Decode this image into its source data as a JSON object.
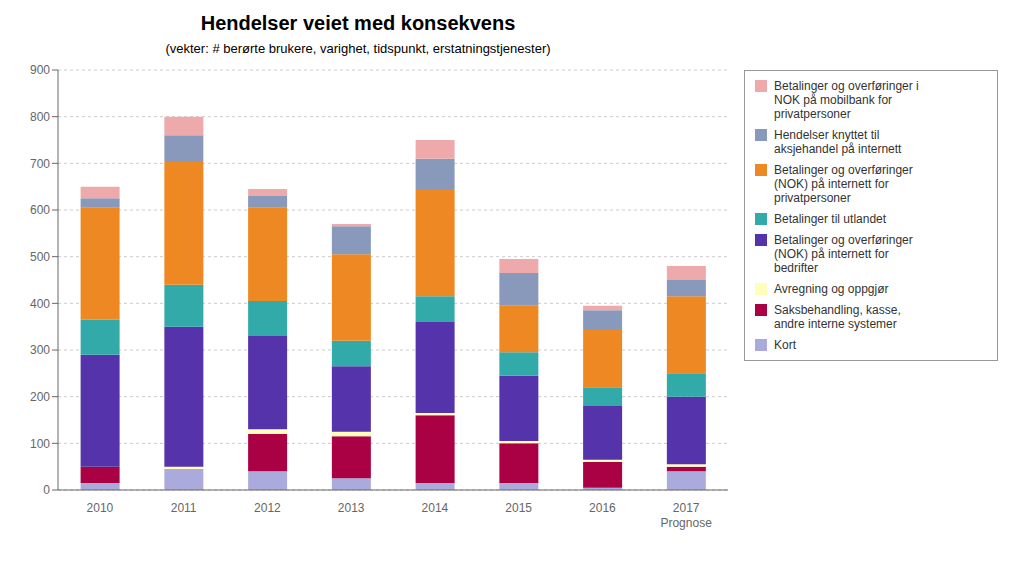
{
  "chart_data": {
    "type": "bar",
    "stacked": true,
    "title": "Hendelser veiet med konsekvens",
    "subtitle": "(vekter: # berørte brukere, varighet, tidspunkt, erstatningstjenester)",
    "categories": [
      "2010",
      "2011",
      "2012",
      "2013",
      "2014",
      "2015",
      "2016",
      "2017\nPrognose"
    ],
    "series": [
      {
        "name": "Kort",
        "color": "#aaaadd",
        "values": [
          15,
          45,
          40,
          25,
          15,
          15,
          5,
          40
        ]
      },
      {
        "name": "Saksbehandling, kasse,\nandre interne systemer",
        "color": "#aa0044",
        "values": [
          35,
          0,
          80,
          90,
          145,
          85,
          55,
          10
        ]
      },
      {
        "name": "Avregning og oppgjør",
        "color": "#ffffbb",
        "values": [
          0,
          5,
          10,
          10,
          5,
          5,
          5,
          5
        ]
      },
      {
        "name": "Betalinger og overføringer\n(NOK) på internett for\nbedrifter",
        "color": "#5533aa",
        "values": [
          240,
          300,
          200,
          140,
          195,
          140,
          115,
          145
        ]
      },
      {
        "name": "Betalinger til utlandet",
        "color": "#33aaaa",
        "values": [
          75,
          90,
          75,
          55,
          55,
          50,
          40,
          50
        ]
      },
      {
        "name": "Betalinger og overføringer\n(NOK) på internett for\nprivatpersoner",
        "color": "#ee8822",
        "values": [
          240,
          265,
          200,
          185,
          230,
          100,
          125,
          165
        ]
      },
      {
        "name": "Hendelser knyttet til\naksjehandel på internett",
        "color": "#8899bb",
        "values": [
          20,
          55,
          25,
          60,
          65,
          70,
          40,
          35
        ]
      },
      {
        "name": "Betalinger og overføringer i\nNOK på mobilbank for\nprivatpersoner",
        "color": "#eeaaaa",
        "values": [
          25,
          40,
          15,
          5,
          40,
          30,
          10,
          30
        ]
      }
    ],
    "ylim": [
      0,
      900
    ],
    "yticks": [
      0,
      100,
      200,
      300,
      400,
      500,
      600,
      700,
      800,
      900
    ],
    "grid": true,
    "legend": "right"
  }
}
